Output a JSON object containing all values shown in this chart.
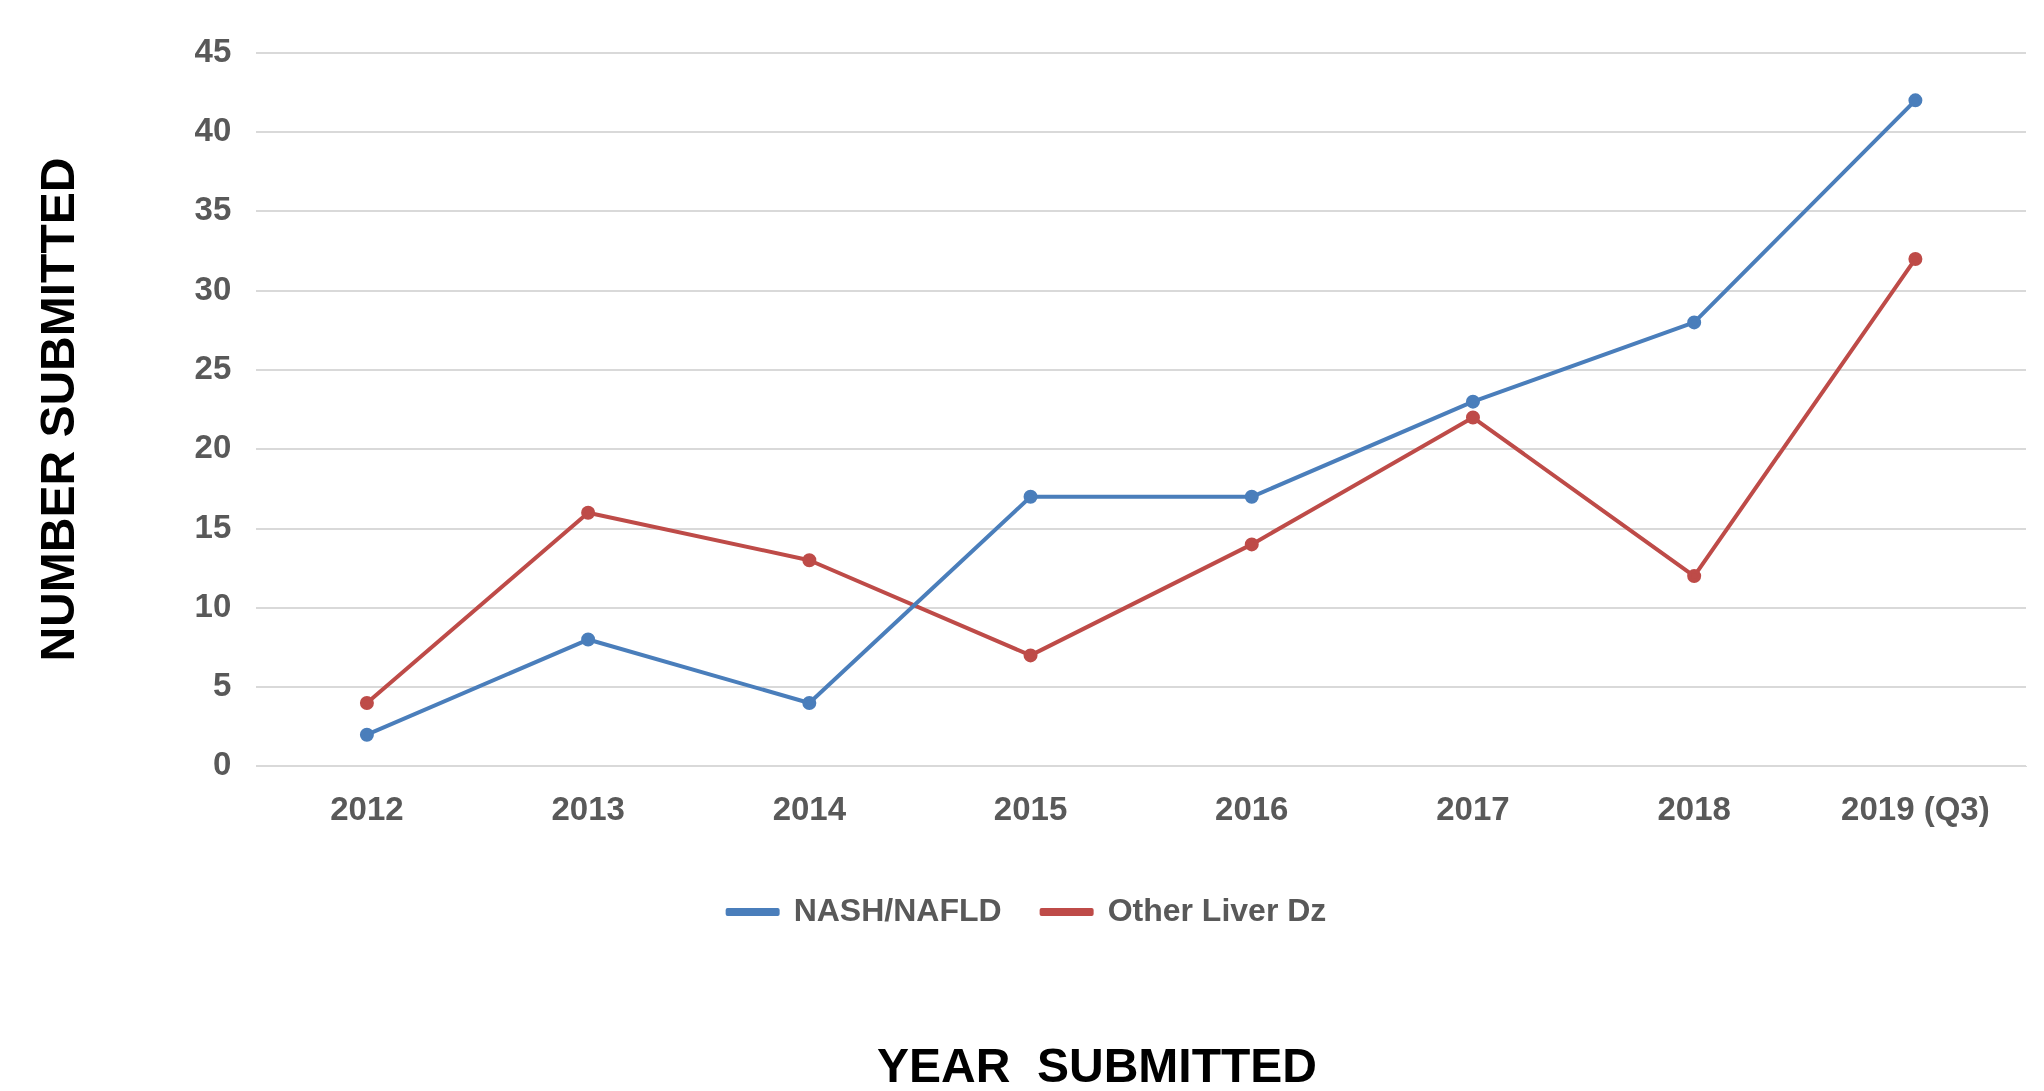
{
  "chart_data": {
    "type": "line",
    "xlabel": "YEAR  SUBMITTED",
    "ylabel": "NUMBER SUBMITTED",
    "categories": [
      "2012",
      "2013",
      "2014",
      "2015",
      "2016",
      "2017",
      "2018",
      "2019 (Q3)"
    ],
    "series": [
      {
        "name": "NASH/NAFLD",
        "color": "#4a7ebb",
        "values": [
          2,
          8,
          4,
          17,
          17,
          23,
          28,
          42
        ]
      },
      {
        "name": "Other Liver Dz",
        "color": "#be4b48",
        "values": [
          4,
          16,
          13,
          7,
          14,
          22,
          12,
          32
        ]
      }
    ],
    "ylim": [
      0,
      45
    ],
    "yticks": [
      0,
      5,
      10,
      15,
      20,
      25,
      30,
      35,
      40,
      45
    ],
    "grid": "y",
    "legend": "bottom",
    "marker": "circle",
    "line_style": "solid"
  }
}
